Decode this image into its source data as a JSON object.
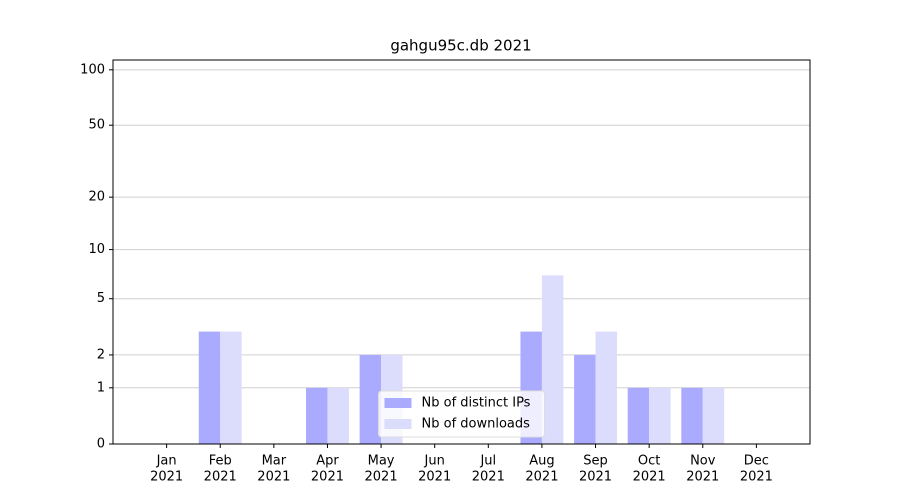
{
  "chart_data": {
    "type": "bar",
    "title": "gahgu95c.db 2021",
    "categories": [
      [
        "Jan",
        "2021"
      ],
      [
        "Feb",
        "2021"
      ],
      [
        "Mar",
        "2021"
      ],
      [
        "Apr",
        "2021"
      ],
      [
        "May",
        "2021"
      ],
      [
        "Jun",
        "2021"
      ],
      [
        "Jul",
        "2021"
      ],
      [
        "Aug",
        "2021"
      ],
      [
        "Sep",
        "2021"
      ],
      [
        "Oct",
        "2021"
      ],
      [
        "Nov",
        "2021"
      ],
      [
        "Dec",
        "2021"
      ]
    ],
    "series": [
      {
        "name": "Nb of distinct IPs",
        "color": "#aaaaff",
        "values": [
          0,
          3,
          0,
          1,
          2,
          0,
          0,
          3,
          2,
          1,
          1,
          0
        ]
      },
      {
        "name": "Nb of downloads",
        "color": "#dcdcfc",
        "values": [
          0,
          3,
          0,
          1,
          2,
          0,
          0,
          7,
          3,
          1,
          1,
          0
        ]
      }
    ],
    "yscale": "log1p",
    "ylim": [
      0,
      113
    ],
    "yticks": [
      0,
      1,
      2,
      5,
      10,
      20,
      50,
      100
    ],
    "grid": true,
    "legend": "lower center"
  }
}
